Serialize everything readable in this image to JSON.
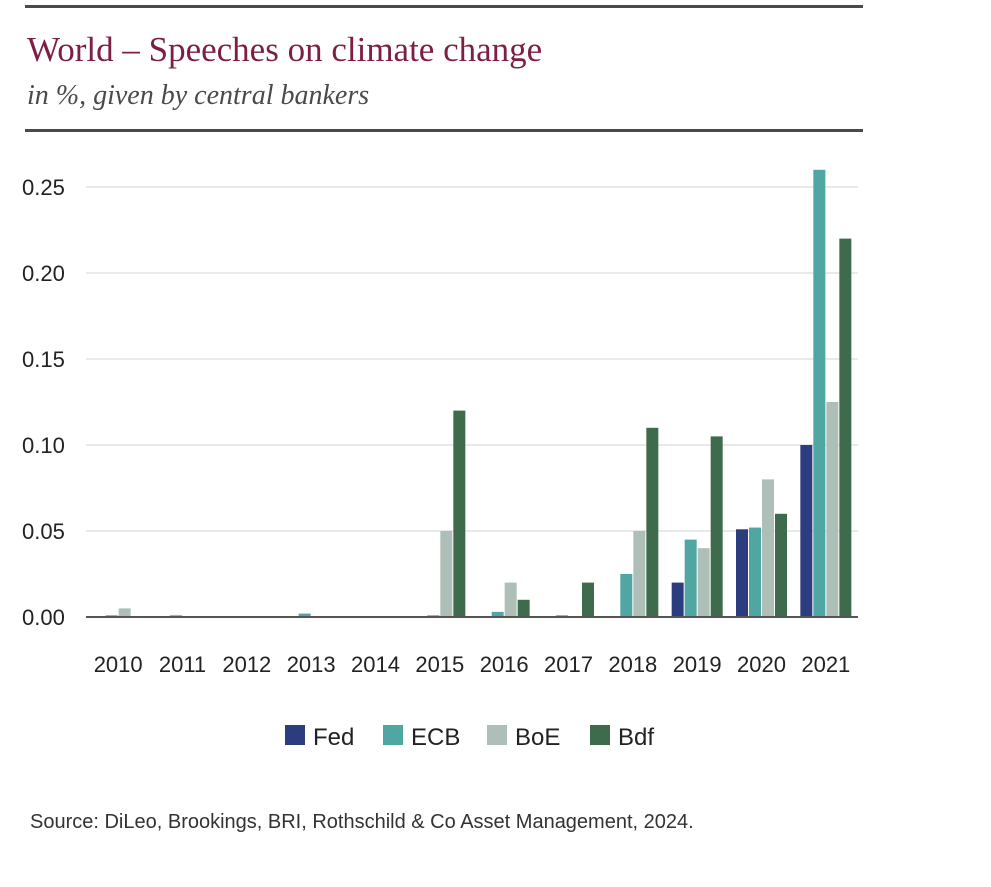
{
  "header": {
    "title": "World – Speeches on climate change",
    "subtitle": "in %, given by central bankers"
  },
  "footer": {
    "source": "Source: DiLeo, Brookings, BRI, Rothschild & Co Asset Management, 2024."
  },
  "chart_data": {
    "type": "bar",
    "categories": [
      "2010",
      "2011",
      "2012",
      "2013",
      "2014",
      "2015",
      "2016",
      "2017",
      "2018",
      "2019",
      "2020",
      "2021"
    ],
    "series": [
      {
        "name": "Fed",
        "color": "#2b3d7f",
        "values": [
          0,
          0,
          0,
          0,
          0,
          0,
          0,
          0,
          0,
          0.02,
          0.051,
          0.1
        ]
      },
      {
        "name": "ECB",
        "color": "#4fa6a2",
        "values": [
          0.001,
          0.001,
          0,
          0.002,
          0,
          0.001,
          0.003,
          0.001,
          0.025,
          0.045,
          0.052,
          0.26
        ]
      },
      {
        "name": "BoE",
        "color": "#adbfb6",
        "values": [
          0.005,
          0,
          0,
          0,
          0,
          0.05,
          0.02,
          0,
          0.05,
          0.04,
          0.08,
          0.125
        ]
      },
      {
        "name": "Bdf",
        "color": "#3d6b4b",
        "values": [
          0,
          0,
          0,
          0,
          0,
          0.12,
          0.01,
          0.02,
          0.11,
          0.105,
          0.06,
          0.22
        ]
      }
    ],
    "yticks": [
      "0.00",
      "0.05",
      "0.10",
      "0.15",
      "0.20",
      "0.25"
    ],
    "ylim": [
      0,
      0.25
    ],
    "xlabel": "",
    "ylabel": "",
    "grid": true,
    "legend_position": "bottom"
  }
}
